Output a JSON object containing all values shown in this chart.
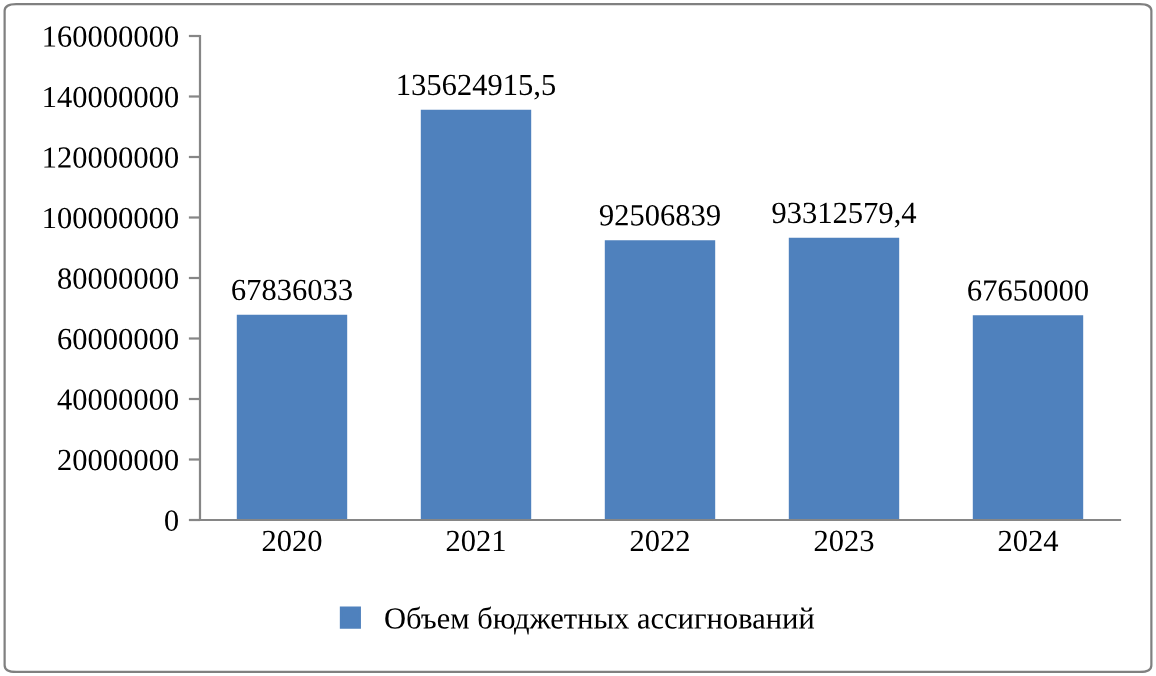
{
  "chart_data": {
    "type": "bar",
    "categories": [
      "2020",
      "2021",
      "2022",
      "2023",
      "2024"
    ],
    "series": [
      {
        "name": "Объем бюджетных ассигнований",
        "color": "#4f81bd",
        "values": [
          67836033,
          135624915.5,
          92506839,
          93312579.4,
          67650000
        ],
        "value_labels": [
          "67836033",
          "135624915,5",
          "92506839",
          "93312579,4",
          "67650000"
        ]
      }
    ],
    "ylim": [
      0,
      160000000
    ],
    "yticks": [
      0,
      20000000,
      40000000,
      60000000,
      80000000,
      100000000,
      120000000,
      140000000,
      160000000
    ],
    "grid": false,
    "legend": "bottom"
  }
}
